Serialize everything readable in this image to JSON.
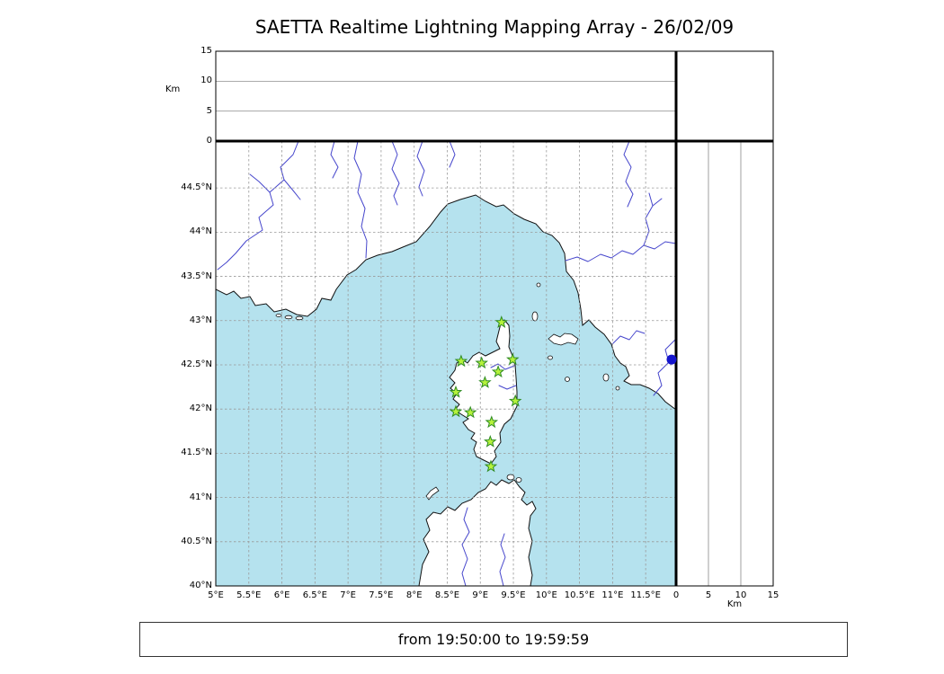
{
  "title": "SAETTA Realtime Lightning Mapping Array - 26/02/09",
  "status_bar": {
    "text": "from 19:50:00 to 19:59:59"
  },
  "colors": {
    "sea": "#b5e2ee",
    "land": "#ffffff",
    "coastline": "#111111",
    "river": "#4646cc",
    "grid": "#999999",
    "station_fill": "#b6f23c",
    "station_stroke": "#2e8b22",
    "dot": "#1414cc"
  },
  "chart_data": {
    "type": "map",
    "title": "SAETTA Realtime Lightning Mapping Array - 26/02/09",
    "time_range": "from 19:50:00 to 19:59:59",
    "map_panel": {
      "lon_range": [
        5.0,
        11.96
      ],
      "lat_range": [
        40.0,
        45.03
      ],
      "grid": "dashed, 0.5 degree spacing",
      "lon_ticks": [
        {
          "label": "5°E",
          "value": 5
        },
        {
          "label": "5.5°E",
          "value": 5.5
        },
        {
          "label": "6°E",
          "value": 6
        },
        {
          "label": "6.5°E",
          "value": 6.5
        },
        {
          "label": "7°E",
          "value": 7
        },
        {
          "label": "7.5°E",
          "value": 7.5
        },
        {
          "label": "8°E",
          "value": 8
        },
        {
          "label": "8.5°E",
          "value": 8.5
        },
        {
          "label": "9°E",
          "value": 9
        },
        {
          "label": "9.5°E",
          "value": 9.5
        },
        {
          "label": "10°E",
          "value": 10
        },
        {
          "label": "10.5°E",
          "value": 10.5
        },
        {
          "label": "11°E",
          "value": 11
        },
        {
          "label": "11.5°E",
          "value": 11.5
        }
      ],
      "lat_ticks": [
        {
          "label": "40°N",
          "value": 40
        },
        {
          "label": "40.5°N",
          "value": 40.5
        },
        {
          "label": "41°N",
          "value": 41
        },
        {
          "label": "41.5°N",
          "value": 41.5
        },
        {
          "label": "42°N",
          "value": 42
        },
        {
          "label": "42.5°N",
          "value": 42.5
        },
        {
          "label": "43°N",
          "value": 43
        },
        {
          "label": "43.5°N",
          "value": 43.5
        },
        {
          "label": "44°N",
          "value": 44
        },
        {
          "label": "44.5°N",
          "value": 44.5
        }
      ]
    },
    "altitude_axis": {
      "label": "Km",
      "range": [
        0,
        15
      ],
      "ticks": [
        {
          "label": "0",
          "value": 0
        },
        {
          "label": "5",
          "value": 5
        },
        {
          "label": "10",
          "value": 10
        },
        {
          "label": "15",
          "value": 15
        }
      ],
      "gridlines_km": [
        5,
        10
      ]
    },
    "stations": [
      {
        "lon": 9.32,
        "lat": 42.98
      },
      {
        "lon": 8.71,
        "lat": 42.54
      },
      {
        "lon": 9.02,
        "lat": 42.52
      },
      {
        "lon": 9.49,
        "lat": 42.56
      },
      {
        "lon": 9.27,
        "lat": 42.42
      },
      {
        "lon": 9.07,
        "lat": 42.3
      },
      {
        "lon": 8.63,
        "lat": 42.19
      },
      {
        "lon": 9.53,
        "lat": 42.09
      },
      {
        "lon": 8.63,
        "lat": 41.97
      },
      {
        "lon": 8.85,
        "lat": 41.96
      },
      {
        "lon": 9.17,
        "lat": 41.85
      },
      {
        "lon": 9.15,
        "lat": 41.63
      },
      {
        "lon": 9.16,
        "lat": 41.35
      }
    ],
    "blue_dot": {
      "lat": 42.56
    }
  }
}
